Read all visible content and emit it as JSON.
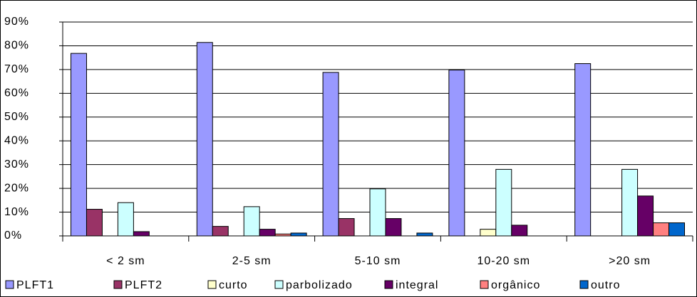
{
  "chart_data": {
    "type": "bar",
    "categories": [
      "< 2 sm",
      "2-5 sm",
      "5-10 sm",
      "10-20 sm",
      ">20 sm"
    ],
    "series": [
      {
        "name": "PLFT1",
        "color": "#9999ff",
        "values": [
          76.8,
          81.4,
          68.8,
          69.8,
          72.5
        ]
      },
      {
        "name": "PLFT2",
        "color": "#993366",
        "values": [
          11.2,
          4.0,
          7.3,
          0,
          0
        ]
      },
      {
        "name": "curto",
        "color": "#ffffcc",
        "values": [
          0,
          0,
          0,
          2.8,
          0
        ]
      },
      {
        "name": "parbolizado",
        "color": "#ccffff",
        "values": [
          14.0,
          12.3,
          19.8,
          28.0,
          28.0
        ]
      },
      {
        "name": "integral",
        "color": "#660066",
        "values": [
          1.8,
          2.8,
          7.3,
          4.5,
          16.8
        ]
      },
      {
        "name": "orgânico",
        "color": "#ff8080",
        "values": [
          0,
          0.8,
          0,
          0,
          5.5
        ]
      },
      {
        "name": "outro",
        "color": "#0066cc",
        "values": [
          0,
          1.2,
          1.2,
          0,
          5.5
        ]
      }
    ],
    "ylim": [
      0,
      90
    ],
    "yticks": [
      {
        "value": 0,
        "label": "0%"
      },
      {
        "value": 10,
        "label": "10%"
      },
      {
        "value": 20,
        "label": "20%"
      },
      {
        "value": 30,
        "label": "30%"
      },
      {
        "value": 40,
        "label": "40%"
      },
      {
        "value": 50,
        "label": "50%"
      },
      {
        "value": 60,
        "label": "60%"
      },
      {
        "value": 70,
        "label": "70%"
      },
      {
        "value": 80,
        "label": "80%"
      },
      {
        "value": 90,
        "label": "90%"
      }
    ],
    "grid": true,
    "legend": "bottom"
  }
}
